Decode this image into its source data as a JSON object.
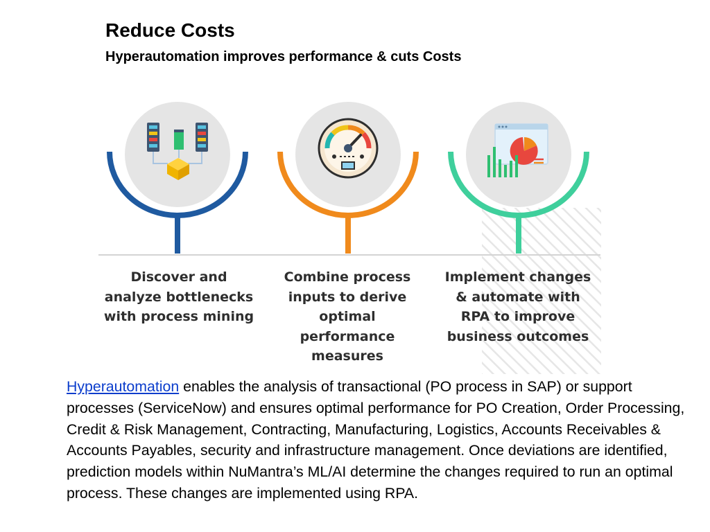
{
  "header": {
    "title": "Reduce Costs",
    "subtitle": "Hyperautomation improves performance & cuts Costs"
  },
  "steps": [
    {
      "text": "Discover and\nanalyze bottlenecks\nwith process mining",
      "color": "#1f5aa0",
      "icon": "process-mining-icon"
    },
    {
      "text": "Combine process\ninputs to derive\noptimal\nperformance\nmeasures",
      "color": "#f08a1c",
      "icon": "gauge-icon"
    },
    {
      "text": "Implement changes\n& automate with\nRPA to improve\nbusiness outcomes",
      "color": "#3fcf9c",
      "icon": "analytics-chart-icon"
    }
  ],
  "body": {
    "link_text": "Hyperautomation",
    "text": " enables the analysis of transactional (PO process in SAP) or support processes (ServiceNow) and ensures optimal performance for PO Creation, Order Processing, Credit & Risk Management, Contracting, Manufacturing, Logistics, Accounts Receivables & Accounts Payables, security and infrastructure management. Once deviations are identified, prediction models within NuMantra’s ML/AI determine the changes required to run an optimal process. These changes are implemented using RPA."
  }
}
